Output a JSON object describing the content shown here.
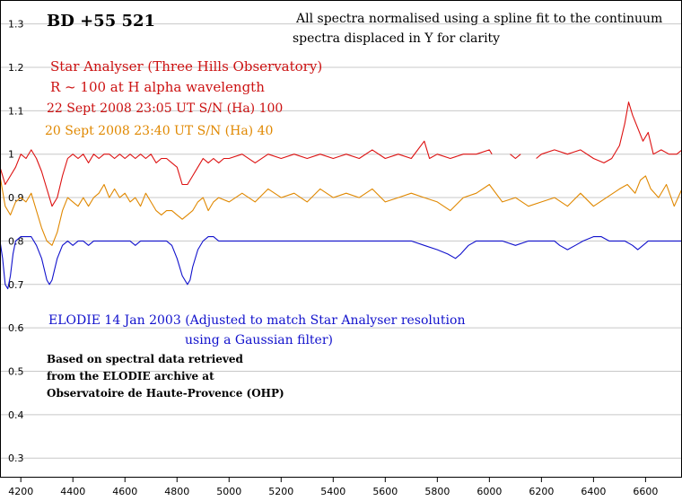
{
  "chart_data": {
    "type": "line",
    "title": "BD +55 521",
    "xlabel": "",
    "ylabel": "",
    "xlim": [
      4120,
      6740
    ],
    "ylim": [
      0.255,
      1.355
    ],
    "xticks": [
      4200,
      4400,
      4600,
      4800,
      5000,
      5200,
      5400,
      5600,
      5800,
      6000,
      6200,
      6400,
      6600
    ],
    "yticks": [
      0.3,
      0.4,
      0.5,
      0.6,
      0.7,
      0.8,
      0.9,
      1,
      1.1,
      1.2,
      1.3
    ],
    "grid": "horizontal",
    "annotations": {
      "note_line1": "All spectra normalised using a spline fit to the continuum",
      "note_line2": "spectra displaced in Y for clarity",
      "instrument_line1": "Star Analyser (Three Hills Observatory)",
      "instrument_line2": "R ~ 100 at H alpha wavelength",
      "red_label": "22 Sept 2008 23:05 UT    S/N (Ha) 100",
      "orange_label": "20 Sept 2008 23:40 UT    S/N (Ha) 40",
      "blue_label_line1": "ELODIE  14 Jan 2003  (Adjusted to match Star Analyser resolution",
      "blue_label_line2": "using a Gaussian filter)",
      "source_line1": "Based on spectral data retrieved",
      "source_line2": "from the ELODIE archive at",
      "source_line3": "Observatoire de Haute-Provence (OHP)"
    },
    "series": [
      {
        "color": "#dd1111",
        "points": [
          [
            4120,
            0.97
          ],
          [
            4140,
            0.93
          ],
          [
            4160,
            0.95
          ],
          [
            4180,
            0.97
          ],
          [
            4200,
            1.0
          ],
          [
            4220,
            0.99
          ],
          [
            4240,
            1.01
          ],
          [
            4260,
            0.99
          ],
          [
            4280,
            0.96
          ],
          [
            4300,
            0.92
          ],
          [
            4320,
            0.88
          ],
          [
            4340,
            0.9
          ],
          [
            4360,
            0.95
          ],
          [
            4380,
            0.99
          ],
          [
            4400,
            1.0
          ],
          [
            4420,
            0.99
          ],
          [
            4440,
            1.0
          ],
          [
            4460,
            0.98
          ],
          [
            4480,
            1.0
          ],
          [
            4500,
            0.99
          ],
          [
            4520,
            1.0
          ],
          [
            4540,
            1.0
          ],
          [
            4560,
            0.99
          ],
          [
            4580,
            1.0
          ],
          [
            4600,
            0.99
          ],
          [
            4620,
            1.0
          ],
          [
            4640,
            0.99
          ],
          [
            4660,
            1.0
          ],
          [
            4680,
            0.99
          ],
          [
            4700,
            1.0
          ],
          [
            4720,
            0.98
          ],
          [
            4740,
            0.99
          ],
          [
            4760,
            0.99
          ],
          [
            4780,
            0.98
          ],
          [
            4800,
            0.97
          ],
          [
            4820,
            0.93
          ],
          [
            4840,
            0.93
          ],
          [
            4860,
            0.95
          ],
          [
            4880,
            0.97
          ],
          [
            4900,
            0.99
          ],
          [
            4920,
            0.98
          ],
          [
            4940,
            0.99
          ],
          [
            4960,
            0.98
          ],
          [
            4980,
            0.99
          ],
          [
            5000,
            0.99
          ],
          [
            5050,
            1.0
          ],
          [
            5100,
            0.98
          ],
          [
            5150,
            1.0
          ],
          [
            5200,
            0.99
          ],
          [
            5250,
            1.0
          ],
          [
            5300,
            0.99
          ],
          [
            5350,
            1.0
          ],
          [
            5400,
            0.99
          ],
          [
            5450,
            1.0
          ],
          [
            5500,
            0.99
          ],
          [
            5550,
            1.01
          ],
          [
            5600,
            0.99
          ],
          [
            5650,
            1.0
          ],
          [
            5700,
            0.99
          ],
          [
            5750,
            1.03
          ],
          [
            5770,
            0.99
          ],
          [
            5800,
            1.0
          ],
          [
            5850,
            0.99
          ],
          [
            5900,
            1.0
          ],
          [
            5950,
            1.0
          ],
          [
            6000,
            1.01
          ],
          [
            6010,
            1.0
          ],
          null,
          [
            6080,
            1.0
          ],
          [
            6100,
            0.99
          ],
          [
            6120,
            1.0
          ],
          null,
          [
            6180,
            0.99
          ],
          [
            6200,
            1.0
          ],
          [
            6250,
            1.01
          ],
          [
            6300,
            1.0
          ],
          [
            6350,
            1.01
          ],
          [
            6400,
            0.99
          ],
          [
            6440,
            0.98
          ],
          [
            6470,
            0.99
          ],
          [
            6500,
            1.02
          ],
          [
            6520,
            1.07
          ],
          [
            6535,
            1.12
          ],
          [
            6550,
            1.09
          ],
          [
            6570,
            1.06
          ],
          [
            6590,
            1.03
          ],
          [
            6610,
            1.05
          ],
          [
            6630,
            1.0
          ],
          [
            6660,
            1.01
          ],
          [
            6690,
            1.0
          ],
          [
            6720,
            1.0
          ],
          [
            6740,
            1.01
          ]
        ]
      },
      {
        "color": "#e08800",
        "points": [
          [
            4120,
            0.95
          ],
          [
            4140,
            0.88
          ],
          [
            4160,
            0.86
          ],
          [
            4180,
            0.89
          ],
          [
            4200,
            0.9
          ],
          [
            4220,
            0.89
          ],
          [
            4240,
            0.91
          ],
          [
            4260,
            0.87
          ],
          [
            4280,
            0.83
          ],
          [
            4300,
            0.8
          ],
          [
            4320,
            0.79
          ],
          [
            4340,
            0.82
          ],
          [
            4360,
            0.87
          ],
          [
            4380,
            0.9
          ],
          [
            4400,
            0.89
          ],
          [
            4420,
            0.88
          ],
          [
            4440,
            0.9
          ],
          [
            4460,
            0.88
          ],
          [
            4480,
            0.9
          ],
          [
            4500,
            0.91
          ],
          [
            4520,
            0.93
          ],
          [
            4540,
            0.9
          ],
          [
            4560,
            0.92
          ],
          [
            4580,
            0.9
          ],
          [
            4600,
            0.91
          ],
          [
            4620,
            0.89
          ],
          [
            4640,
            0.9
          ],
          [
            4660,
            0.88
          ],
          [
            4680,
            0.91
          ],
          [
            4700,
            0.89
          ],
          [
            4720,
            0.87
          ],
          [
            4740,
            0.86
          ],
          [
            4760,
            0.87
          ],
          [
            4780,
            0.87
          ],
          [
            4800,
            0.86
          ],
          [
            4820,
            0.85
          ],
          [
            4840,
            0.86
          ],
          [
            4860,
            0.87
          ],
          [
            4880,
            0.89
          ],
          [
            4900,
            0.9
          ],
          [
            4920,
            0.87
          ],
          [
            4940,
            0.89
          ],
          [
            4960,
            0.9
          ],
          [
            5000,
            0.89
          ],
          [
            5050,
            0.91
          ],
          [
            5100,
            0.89
          ],
          [
            5150,
            0.92
          ],
          [
            5200,
            0.9
          ],
          [
            5250,
            0.91
          ],
          [
            5300,
            0.89
          ],
          [
            5350,
            0.92
          ],
          [
            5400,
            0.9
          ],
          [
            5450,
            0.91
          ],
          [
            5500,
            0.9
          ],
          [
            5550,
            0.92
          ],
          [
            5600,
            0.89
          ],
          [
            5650,
            0.9
          ],
          [
            5700,
            0.91
          ],
          [
            5750,
            0.9
          ],
          [
            5800,
            0.89
          ],
          [
            5850,
            0.87
          ],
          [
            5900,
            0.9
          ],
          [
            5950,
            0.91
          ],
          [
            6000,
            0.93
          ],
          [
            6050,
            0.89
          ],
          [
            6100,
            0.9
          ],
          [
            6150,
            0.88
          ],
          [
            6200,
            0.89
          ],
          [
            6250,
            0.9
          ],
          [
            6300,
            0.88
          ],
          [
            6350,
            0.91
          ],
          [
            6400,
            0.88
          ],
          [
            6450,
            0.9
          ],
          [
            6500,
            0.92
          ],
          [
            6530,
            0.93
          ],
          [
            6560,
            0.91
          ],
          [
            6580,
            0.94
          ],
          [
            6600,
            0.95
          ],
          [
            6620,
            0.92
          ],
          [
            6650,
            0.9
          ],
          [
            6680,
            0.93
          ],
          [
            6710,
            0.88
          ],
          [
            6740,
            0.92
          ]
        ]
      },
      {
        "color": "#1111cc",
        "points": [
          [
            4120,
            0.8
          ],
          [
            4130,
            0.76
          ],
          [
            4140,
            0.7
          ],
          [
            4150,
            0.69
          ],
          [
            4160,
            0.72
          ],
          [
            4170,
            0.77
          ],
          [
            4180,
            0.8
          ],
          [
            4200,
            0.81
          ],
          [
            4220,
            0.81
          ],
          [
            4240,
            0.81
          ],
          [
            4260,
            0.79
          ],
          [
            4280,
            0.76
          ],
          [
            4300,
            0.71
          ],
          [
            4310,
            0.7
          ],
          [
            4320,
            0.71
          ],
          [
            4340,
            0.76
          ],
          [
            4360,
            0.79
          ],
          [
            4380,
            0.8
          ],
          [
            4400,
            0.79
          ],
          [
            4420,
            0.8
          ],
          [
            4440,
            0.8
          ],
          [
            4460,
            0.79
          ],
          [
            4480,
            0.8
          ],
          [
            4500,
            0.8
          ],
          [
            4520,
            0.8
          ],
          [
            4540,
            0.8
          ],
          [
            4560,
            0.8
          ],
          [
            4580,
            0.8
          ],
          [
            4600,
            0.8
          ],
          [
            4620,
            0.8
          ],
          [
            4640,
            0.79
          ],
          [
            4660,
            0.8
          ],
          [
            4680,
            0.8
          ],
          [
            4700,
            0.8
          ],
          [
            4720,
            0.8
          ],
          [
            4740,
            0.8
          ],
          [
            4760,
            0.8
          ],
          [
            4780,
            0.79
          ],
          [
            4800,
            0.76
          ],
          [
            4820,
            0.72
          ],
          [
            4840,
            0.7
          ],
          [
            4850,
            0.71
          ],
          [
            4860,
            0.74
          ],
          [
            4880,
            0.78
          ],
          [
            4900,
            0.8
          ],
          [
            4920,
            0.81
          ],
          [
            4940,
            0.81
          ],
          [
            4960,
            0.8
          ],
          [
            4980,
            0.8
          ],
          [
            5000,
            0.8
          ],
          [
            5100,
            0.8
          ],
          [
            5200,
            0.8
          ],
          [
            5300,
            0.8
          ],
          [
            5400,
            0.8
          ],
          [
            5500,
            0.8
          ],
          [
            5600,
            0.8
          ],
          [
            5700,
            0.8
          ],
          [
            5750,
            0.79
          ],
          [
            5800,
            0.78
          ],
          [
            5840,
            0.77
          ],
          [
            5870,
            0.76
          ],
          [
            5890,
            0.77
          ],
          [
            5920,
            0.79
          ],
          [
            5950,
            0.8
          ],
          [
            6000,
            0.8
          ],
          [
            6050,
            0.8
          ],
          [
            6100,
            0.79
          ],
          [
            6150,
            0.8
          ],
          [
            6200,
            0.8
          ],
          [
            6250,
            0.8
          ],
          [
            6270,
            0.79
          ],
          [
            6300,
            0.78
          ],
          [
            6330,
            0.79
          ],
          [
            6360,
            0.8
          ],
          [
            6400,
            0.81
          ],
          [
            6430,
            0.81
          ],
          [
            6460,
            0.8
          ],
          [
            6490,
            0.8
          ],
          [
            6520,
            0.8
          ],
          [
            6550,
            0.79
          ],
          [
            6570,
            0.78
          ],
          [
            6590,
            0.79
          ],
          [
            6610,
            0.8
          ],
          [
            6650,
            0.8
          ],
          [
            6700,
            0.8
          ],
          [
            6740,
            0.8
          ]
        ]
      }
    ]
  }
}
